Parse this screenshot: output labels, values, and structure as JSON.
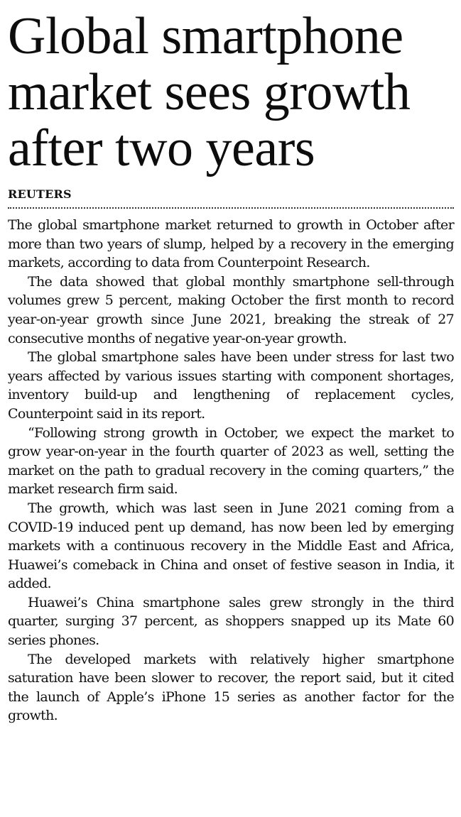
{
  "article": {
    "headline_lines": [
      "Global smartphone",
      "market sees growth",
      "after two years"
    ],
    "byline": "REUTERS",
    "paragraphs": [
      "The global smartphone market returned to growth in October after more than two years of slump, helped by a recovery in the emerging markets, according to data from Counterpoint Research.",
      "The data showed that global monthly smartphone sell-through volumes grew 5 percent, making October the first month to record year-on-year growth since June 2021, breaking the streak of 27 consecutive months of negative year-on-year growth.",
      "The global smartphone sales have been under stress for last two years affected by various issues starting with component shortages, inventory build-up and lengthening of replacement cycles, Counterpoint said in its report.",
      "“Following strong growth in October, we expect the market to grow year-on-year in the fourth quarter of 2023 as well, setting the market on the path to gradual recovery in the coming quarters,” the market research firm said.",
      "The growth, which was last seen in June 2021 coming from a COVID-19 induced pent up demand, has now been led by emerging markets with a continuous recovery in the Middle East and Africa, Huawei’s comeback in China and onset of festive season in India, it added.",
      "Huawei’s China smartphone sales grew strongly in the third quarter, surging 37 percent, as shoppers snapped up its Mate 60 series phones.",
      "The developed markets with relatively higher smartphone saturation have been slower to recover, the report said, but it cited the launch of Apple’s iPhone 15 series as another factor for the growth."
    ]
  }
}
